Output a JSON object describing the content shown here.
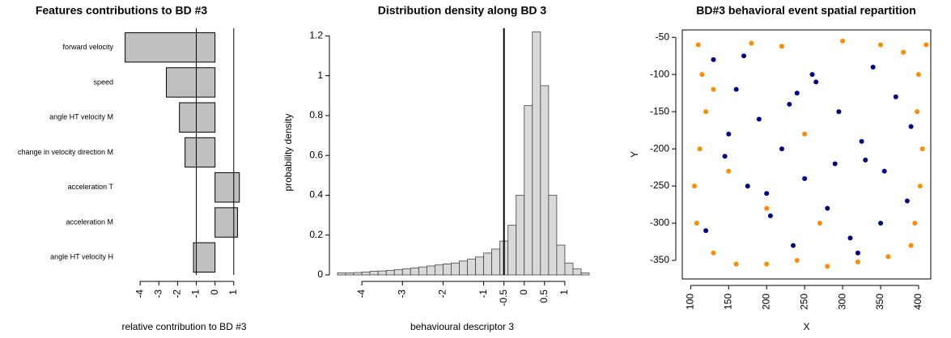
{
  "chart_data": [
    {
      "type": "barh",
      "title": "Features contributions to BD #3",
      "categories": [
        "forward velocity",
        "speed",
        "angle HT velocity M",
        "change in velocity direction M",
        "acceleration T",
        "acceleration M",
        "angle HT velocity H"
      ],
      "values": [
        -4.8,
        -2.6,
        -1.9,
        -1.6,
        1.3,
        1.2,
        -1.15
      ],
      "color": "#c0c0c0",
      "xlim": [
        -5,
        1.7
      ],
      "xticks": [
        -4,
        -3,
        -2,
        -1,
        0,
        1
      ],
      "vlines": [
        -1,
        1
      ],
      "xlabel": "relative contribution to BD #3"
    },
    {
      "type": "histogram",
      "title": "Distribution density along BD 3",
      "bins": [
        -4.6,
        -4.4,
        -4.2,
        -4.0,
        -3.8,
        -3.6,
        -3.4,
        -3.2,
        -3.0,
        -2.8,
        -2.6,
        -2.4,
        -2.2,
        -2.0,
        -1.8,
        -1.6,
        -1.4,
        -1.2,
        -1.0,
        -0.8,
        -0.6,
        -0.4,
        -0.2,
        0.0,
        0.2,
        0.4,
        0.6,
        0.8,
        1.0,
        1.2,
        1.4,
        1.6
      ],
      "values": [
        0.01,
        0.01,
        0.012,
        0.015,
        0.018,
        0.02,
        0.023,
        0.027,
        0.03,
        0.035,
        0.04,
        0.045,
        0.05,
        0.055,
        0.06,
        0.07,
        0.08,
        0.09,
        0.11,
        0.13,
        0.17,
        0.25,
        0.4,
        0.85,
        1.22,
        0.95,
        0.4,
        0.15,
        0.06,
        0.03,
        0.01
      ],
      "color": "#d9d9d9",
      "xlim": [
        -4.64,
        1.58
      ],
      "ylim": [
        0,
        1.23
      ],
      "xticks": [
        -4,
        -3,
        -2,
        -1,
        -0.5,
        0,
        0.5,
        1
      ],
      "yticks": [
        0.0,
        0.2,
        0.4,
        0.6,
        0.8,
        1.0,
        1.2
      ],
      "vlines": [
        -0.5
      ],
      "xlabel": "behavioural descriptor 3",
      "ylabel": "probability density"
    },
    {
      "type": "scatter",
      "title": "BD#3 behavioral event spatial repartition",
      "series": [
        {
          "color": "#ff8c00",
          "x": [
            110,
            120,
            105,
            130,
            160,
            200,
            240,
            280,
            320,
            360,
            395,
            405,
            400,
            410,
            398,
            402,
            108,
            112,
            115,
            180,
            220,
            300,
            350,
            250,
            150,
            390,
            380,
            130,
            200,
            270
          ],
          "values": [
            -60,
            -150,
            -250,
            -340,
            -355,
            -355,
            -350,
            -358,
            -352,
            -345,
            -300,
            -200,
            -100,
            -60,
            -150,
            -250,
            -300,
            -200,
            -100,
            -58,
            -62,
            -55,
            -60,
            -180,
            -230,
            -330,
            -70,
            -120,
            -280,
            -300
          ]
        },
        {
          "color": "#00008b",
          "x": [
            130,
            160,
            190,
            220,
            250,
            280,
            310,
            340,
            370,
            390,
            145,
            175,
            205,
            235,
            265,
            295,
            325,
            355,
            385,
            120,
            170,
            230,
            290,
            350,
            200,
            260,
            320,
            150,
            240,
            330
          ],
          "values": [
            -80,
            -120,
            -160,
            -200,
            -240,
            -280,
            -320,
            -90,
            -130,
            -170,
            -210,
            -250,
            -290,
            -330,
            -110,
            -150,
            -190,
            -230,
            -270,
            -310,
            -75,
            -140,
            -220,
            -300,
            -260,
            -100,
            -340,
            -180,
            -125,
            -215
          ]
        }
      ],
      "xlim": [
        89,
        416
      ],
      "ylim": [
        -375,
        -40
      ],
      "xticks": [
        100,
        150,
        200,
        250,
        300,
        350,
        400
      ],
      "yticks": [
        -50,
        -100,
        -150,
        -200,
        -250,
        -300,
        -350
      ],
      "xlabel": "X",
      "ylabel": "Y"
    }
  ]
}
